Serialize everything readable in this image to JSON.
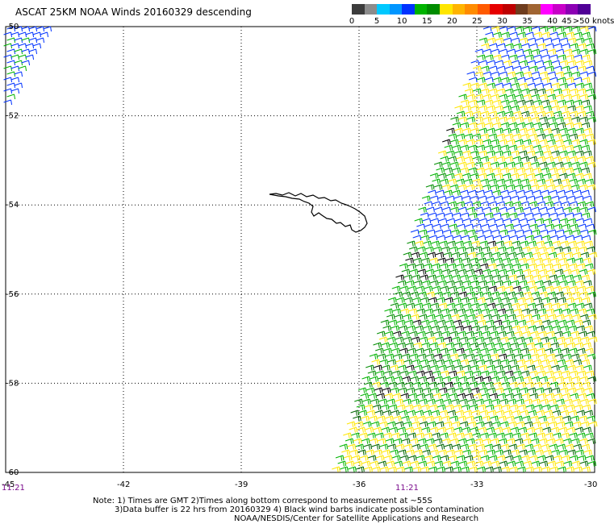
{
  "title": "ASCAT 25KM NOAA Winds 20160329 descending",
  "legend": {
    "colors": [
      "#3c3c3c",
      "#8c8c8c",
      "#00c8ff",
      "#0096ff",
      "#0032ff",
      "#00b400",
      "#008c00",
      "#ffe600",
      "#ffb400",
      "#ff8c00",
      "#ff5a00",
      "#e60000",
      "#be0000",
      "#6e3c1e",
      "#a06432",
      "#ff00ff",
      "#c800c8",
      "#8c00b4",
      "#500096"
    ],
    "ticks": [
      {
        "label": "0",
        "frac": 0.0
      },
      {
        "label": "5",
        "frac": 0.105
      },
      {
        "label": "10",
        "frac": 0.21
      },
      {
        "label": "15",
        "frac": 0.315
      },
      {
        "label": "20",
        "frac": 0.42
      },
      {
        "label": "25",
        "frac": 0.525
      },
      {
        "label": "30",
        "frac": 0.63
      },
      {
        "label": "35",
        "frac": 0.735
      },
      {
        "label": "40",
        "frac": 0.84
      },
      {
        "label": ">50 knots",
        "frac": 0.945
      }
    ],
    "extra_tick": {
      "label": "45",
      "frac": 0.9
    }
  },
  "map": {
    "lat_labels": [
      "-50",
      "-52",
      "-54",
      "-56",
      "-58",
      "-60"
    ],
    "lon_labels": [
      "-45",
      "-42",
      "-39",
      "-36",
      "-33",
      "-30"
    ],
    "time_labels": [
      "11:21",
      "11:21"
    ],
    "lat_range": [
      -60,
      -50
    ],
    "lon_range": [
      -45,
      -30
    ]
  },
  "notes": {
    "line1": "Note: 1) Times are GMT 2)Times along bottom correspond to measurement at ~55S",
    "line2": "3)Data buffer is 22 hrs from 20160329 4) Black wind barbs indicate possible contamination",
    "line3": "NOAA/NESDIS/Center for Satellite Applications and Research"
  }
}
